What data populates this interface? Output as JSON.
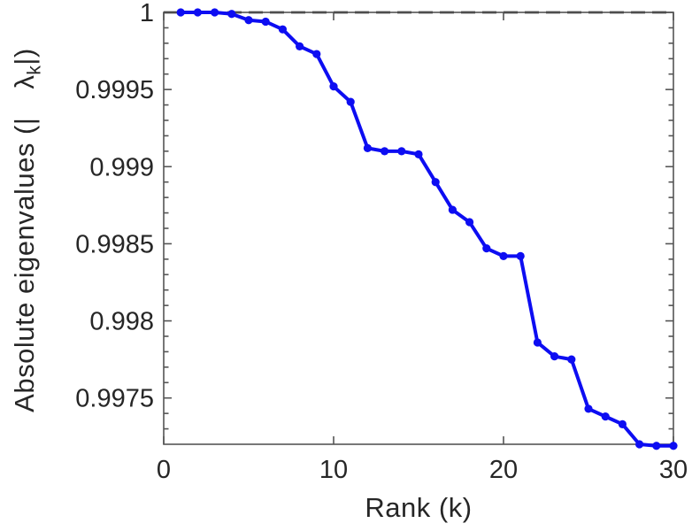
{
  "figure": {
    "xlabel": "Rank (k)",
    "ylabel_parts": {
      "prefix": "Absolute eigenvalues (|",
      "symbol": "λ",
      "subscript": "k",
      "suffix": "|)"
    }
  },
  "chart_data": {
    "type": "line",
    "title": "",
    "xlabel": "Rank (k)",
    "ylabel": "Absolute eigenvalues (|λ_k|)",
    "x": [
      1,
      2,
      3,
      4,
      5,
      6,
      7,
      8,
      9,
      10,
      11,
      12,
      13,
      14,
      15,
      16,
      17,
      18,
      19,
      20,
      21,
      22,
      23,
      24,
      25,
      26,
      27,
      28,
      29,
      30
    ],
    "series": [
      {
        "name": "absolute-eigenvalues",
        "color": "#0d0df2",
        "marker": "circle",
        "values": [
          1.0,
          1.0,
          1.0,
          0.99999,
          0.99995,
          0.99994,
          0.99989,
          0.99978,
          0.99973,
          0.99952,
          0.99942,
          0.99912,
          0.9991,
          0.9991,
          0.99908,
          0.9989,
          0.99872,
          0.99864,
          0.99847,
          0.99842,
          0.99842,
          0.99786,
          0.99777,
          0.99775,
          0.99743,
          0.99738,
          0.99733,
          0.9972,
          0.99719,
          0.99719
        ]
      }
    ],
    "reference_line": {
      "y": 1.0,
      "style": "dashed",
      "color": "#4d4d4d"
    },
    "xlim": [
      0,
      30
    ],
    "ylim": [
      0.9972,
      1.0
    ],
    "xticks": {
      "values": [
        0,
        10,
        20,
        30
      ],
      "labels": [
        "0",
        "10",
        "20",
        "30"
      ]
    },
    "yticks": {
      "values": [
        1.0,
        0.9995,
        0.999,
        0.9985,
        0.998,
        0.9975
      ],
      "labels": [
        "1",
        "0.9995",
        "0.999",
        "0.9985",
        "0.998",
        "0.9975"
      ]
    },
    "y_minor_tick_interval": 0.0001,
    "grid": false,
    "legend": null,
    "box": true,
    "axis_color": "#555555",
    "text_color": "#262626"
  }
}
